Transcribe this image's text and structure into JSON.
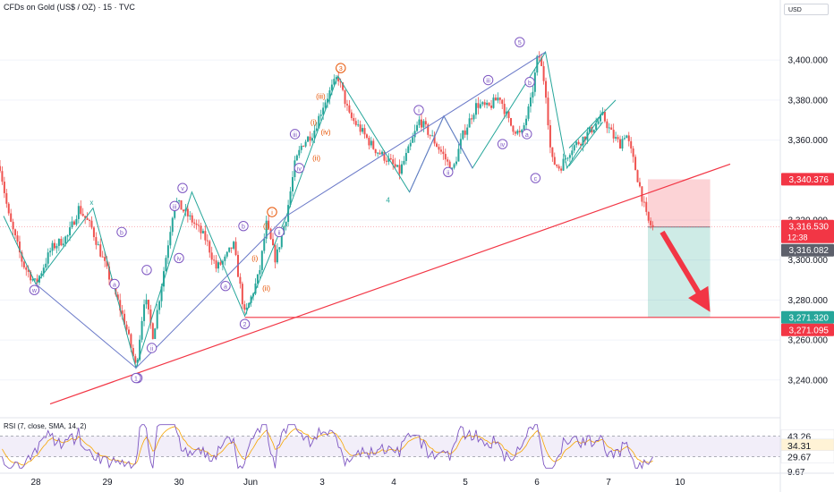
{
  "header": {
    "symbol": "CFDs on Gold (US$ / OZ) · 15 · TVC",
    "currency": "USD"
  },
  "colors": {
    "up": "#26a69a",
    "down": "#ef5350",
    "trendline": "#f23645",
    "wave_primary": "#7e57c2",
    "wave_orange": "#e65100",
    "wave_blue": "#6a79c8",
    "rsi": "#7e57c2"
  },
  "chart_data": {
    "type": "candlestick",
    "x_axis_labels": [
      {
        "t": 0.5,
        "label": "28"
      },
      {
        "t": 1.5,
        "label": "29"
      },
      {
        "t": 2.5,
        "label": "30"
      },
      {
        "t": 3.5,
        "label": "Jun"
      },
      {
        "t": 4.5,
        "label": "3"
      },
      {
        "t": 5.5,
        "label": "4"
      },
      {
        "t": 6.5,
        "label": "5"
      },
      {
        "t": 7.5,
        "label": "6"
      },
      {
        "t": 8.5,
        "label": "7"
      },
      {
        "t": 9.5,
        "label": "10"
      }
    ],
    "y_axis_labels": [
      "3,400.000",
      "3,380.000",
      "3,360.000",
      "3,320.000",
      "3,300.000",
      "3,280.000",
      "3,260.000",
      "3,240.000"
    ],
    "y_ticks": [
      3400,
      3380,
      3360,
      3320,
      3300,
      3280,
      3260,
      3240
    ],
    "ylim": [
      3222,
      3422
    ],
    "xlim": [
      0,
      10.9
    ],
    "price_path": [
      [
        0.0,
        3347
      ],
      [
        0.12,
        3322
      ],
      [
        0.32,
        3298
      ],
      [
        0.5,
        3288
      ],
      [
        0.72,
        3306
      ],
      [
        0.95,
        3312
      ],
      [
        1.1,
        3326
      ],
      [
        1.28,
        3316
      ],
      [
        1.42,
        3302
      ],
      [
        1.58,
        3286
      ],
      [
        1.75,
        3268
      ],
      [
        1.9,
        3246
      ],
      [
        2.02,
        3282
      ],
      [
        2.14,
        3262
      ],
      [
        2.32,
        3302
      ],
      [
        2.44,
        3330
      ],
      [
        2.58,
        3324
      ],
      [
        2.72,
        3318
      ],
      [
        2.88,
        3310
      ],
      [
        3.02,
        3296
      ],
      [
        3.14,
        3300
      ],
      [
        3.26,
        3308
      ],
      [
        3.42,
        3272
      ],
      [
        3.62,
        3293
      ],
      [
        3.72,
        3318
      ],
      [
        3.85,
        3300
      ],
      [
        4.0,
        3322
      ],
      [
        4.12,
        3348
      ],
      [
        4.22,
        3358
      ],
      [
        4.38,
        3364
      ],
      [
        4.52,
        3378
      ],
      [
        4.72,
        3392
      ],
      [
        4.88,
        3372
      ],
      [
        5.02,
        3366
      ],
      [
        5.22,
        3356
      ],
      [
        5.42,
        3350
      ],
      [
        5.58,
        3344
      ],
      [
        5.72,
        3356
      ],
      [
        5.86,
        3370
      ],
      [
        6.02,
        3362
      ],
      [
        6.2,
        3352
      ],
      [
        6.32,
        3344
      ],
      [
        6.46,
        3362
      ],
      [
        6.66,
        3378
      ],
      [
        6.82,
        3376
      ],
      [
        6.98,
        3382
      ],
      [
        7.12,
        3368
      ],
      [
        7.28,
        3362
      ],
      [
        7.42,
        3380
      ],
      [
        7.52,
        3404
      ],
      [
        7.62,
        3386
      ],
      [
        7.7,
        3350
      ],
      [
        7.82,
        3346
      ],
      [
        7.98,
        3356
      ],
      [
        8.12,
        3360
      ],
      [
        8.28,
        3366
      ],
      [
        8.42,
        3372
      ],
      [
        8.56,
        3362
      ],
      [
        8.66,
        3358
      ],
      [
        8.74,
        3364
      ],
      [
        8.86,
        3348
      ],
      [
        8.94,
        3336
      ],
      [
        9.04,
        3320
      ],
      [
        9.12,
        3316
      ]
    ],
    "last_price": "3,316.530",
    "countdown": "12:38",
    "price_tags": [
      {
        "price": 3340.376,
        "label": "3,340.376",
        "color": "#f23645"
      },
      {
        "price": 3316.082,
        "label": "3,316.082",
        "color": "#5d606b"
      },
      {
        "price": 3271.32,
        "label": "3,271.320",
        "color": "#26a69a"
      },
      {
        "price": 3271.095,
        "label": "3,271.095",
        "color": "#f23645"
      }
    ],
    "trendline": {
      "from": [
        0.7,
        3228
      ],
      "to": [
        10.2,
        3348
      ]
    },
    "support_line": 3271.3,
    "short_position": {
      "x0": 9.05,
      "x1": 9.92,
      "entry": 3316.53,
      "stop": 3340.376,
      "target": 3271.32
    },
    "channel": {
      "lower": [
        [
          7.95,
          3347
        ],
        [
          8.42,
          3369
        ]
      ],
      "upper": [
        [
          7.95,
          3356
        ],
        [
          8.6,
          3380
        ]
      ]
    },
    "arrow": {
      "from": [
        9.25,
        3314
      ],
      "to": [
        9.92,
        3274
      ]
    },
    "wave_paths": [
      {
        "color": "#26a69a",
        "points": [
          [
            0.05,
            3322
          ],
          [
            0.5,
            3288
          ],
          [
            1.3,
            3326
          ],
          [
            1.9,
            3246
          ],
          [
            2.68,
            3334
          ],
          [
            3.42,
            3272
          ],
          [
            4.0,
            3322
          ],
          [
            4.72,
            3392
          ],
          [
            5.72,
            3334
          ],
          [
            6.2,
            3372
          ],
          [
            6.6,
            3346
          ],
          [
            7.62,
            3404
          ],
          [
            7.92,
            3346
          ],
          [
            8.42,
            3374
          ]
        ]
      },
      {
        "color": "#6a79c8",
        "points": [
          [
            0.5,
            3288
          ],
          [
            1.9,
            3246
          ],
          [
            4.0,
            3322
          ],
          [
            7.62,
            3404
          ]
        ]
      },
      {
        "color": "#6a79c8",
        "points": [
          [
            5.72,
            3334
          ],
          [
            6.2,
            3372
          ],
          [
            6.6,
            3346
          ]
        ]
      }
    ],
    "wave_labels": [
      {
        "t": 0.48,
        "p": 3285,
        "text": "w",
        "style": "circle",
        "color": "#7e57c2"
      },
      {
        "t": 1.28,
        "p": 3329,
        "text": "x",
        "style": "plain",
        "color": "#26a69a"
      },
      {
        "t": 1.92,
        "p": 3241,
        "text": "y",
        "style": "circle",
        "color": "#7e57c2"
      },
      {
        "t": 1.9,
        "p": 3241,
        "text": "1",
        "style": "circle",
        "color": "#7e57c2"
      },
      {
        "t": 1.6,
        "p": 3288,
        "text": "a",
        "style": "circle",
        "color": "#7e57c2"
      },
      {
        "t": 1.7,
        "p": 3314,
        "text": "b",
        "style": "circle",
        "color": "#7e57c2"
      },
      {
        "t": 2.05,
        "p": 3295,
        "text": "i",
        "style": "circle",
        "color": "#7e57c2"
      },
      {
        "t": 2.12,
        "p": 3256,
        "text": "ii",
        "style": "circle",
        "color": "#7e57c2"
      },
      {
        "t": 2.44,
        "p": 3327,
        "text": "iii",
        "style": "circle",
        "color": "#7e57c2"
      },
      {
        "t": 2.5,
        "p": 3301,
        "text": "iv",
        "style": "circle",
        "color": "#7e57c2"
      },
      {
        "t": 2.55,
        "p": 3336,
        "text": "v",
        "style": "circle",
        "color": "#7e57c2"
      },
      {
        "t": 3.15,
        "p": 3287,
        "text": "a",
        "style": "circle",
        "color": "#7e57c2"
      },
      {
        "t": 3.4,
        "p": 3317,
        "text": "b",
        "style": "circle",
        "color": "#7e57c2"
      },
      {
        "t": 3.42,
        "p": 3268,
        "text": "2",
        "style": "circle",
        "color": "#7e57c2"
      },
      {
        "t": 3.56,
        "p": 3301,
        "text": "(i)",
        "style": "plain",
        "color": "#e65100"
      },
      {
        "t": 3.72,
        "p": 3286,
        "text": "(ii)",
        "style": "plain",
        "color": "#e65100"
      },
      {
        "t": 3.72,
        "p": 3317,
        "text": "(i)",
        "style": "plain",
        "color": "#e65100"
      },
      {
        "t": 3.8,
        "p": 3324,
        "text": "i",
        "style": "circle",
        "color": "#e65100"
      },
      {
        "t": 3.9,
        "p": 3314,
        "text": "ii",
        "style": "circle",
        "color": "#7e57c2"
      },
      {
        "t": 4.12,
        "p": 3363,
        "text": "iii",
        "style": "circle",
        "color": "#7e57c2"
      },
      {
        "t": 4.18,
        "p": 3346,
        "text": "iv",
        "style": "circle",
        "color": "#7e57c2"
      },
      {
        "t": 4.38,
        "p": 3369,
        "text": "(i)",
        "style": "plain",
        "color": "#e65100"
      },
      {
        "t": 4.42,
        "p": 3351,
        "text": "(ii)",
        "style": "plain",
        "color": "#e65100"
      },
      {
        "t": 4.48,
        "p": 3382,
        "text": "(iii)",
        "style": "plain",
        "color": "#e65100"
      },
      {
        "t": 4.55,
        "p": 3364,
        "text": "(iv)",
        "style": "plain",
        "color": "#e65100"
      },
      {
        "t": 4.76,
        "p": 3396,
        "text": "3",
        "style": "circle",
        "color": "#e65100"
      },
      {
        "t": 5.42,
        "p": 3330,
        "text": "4",
        "style": "plain",
        "color": "#26a69a"
      },
      {
        "t": 5.85,
        "p": 3375,
        "text": "i",
        "style": "circle",
        "color": "#7e57c2"
      },
      {
        "t": 6.26,
        "p": 3344,
        "text": "ii",
        "style": "circle",
        "color": "#7e57c2"
      },
      {
        "t": 6.82,
        "p": 3390,
        "text": "iii",
        "style": "circle",
        "color": "#7e57c2"
      },
      {
        "t": 7.02,
        "p": 3358,
        "text": "iv",
        "style": "circle",
        "color": "#7e57c2"
      },
      {
        "t": 7.26,
        "p": 3409,
        "text": "5",
        "style": "circle",
        "color": "#7e57c2"
      },
      {
        "t": 7.4,
        "p": 3389,
        "text": "b",
        "style": "circle",
        "color": "#7e57c2"
      },
      {
        "t": 7.36,
        "p": 3363,
        "text": "a",
        "style": "circle",
        "color": "#7e57c2"
      },
      {
        "t": 7.48,
        "p": 3341,
        "text": "c",
        "style": "circle",
        "color": "#7e57c2"
      }
    ]
  },
  "rsi": {
    "title": "RSI (7, close, SMA, 14, 2)",
    "value_main": "43.26",
    "value_signal": "34.31",
    "value_low": "29.67",
    "axis_label": "9.67",
    "upper_band": 70,
    "lower_band": 30,
    "seed": 7
  }
}
